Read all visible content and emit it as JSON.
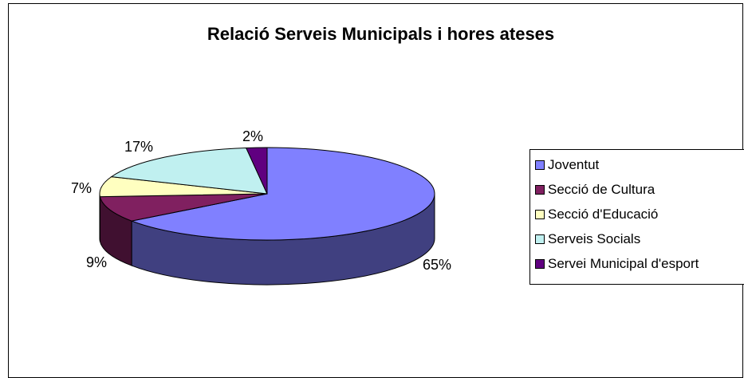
{
  "chart_data": {
    "type": "pie",
    "title": "Relació Serveis Municipals i hores ateses",
    "categories": [
      "Joventut",
      "Secció de Cultura",
      "Secció d'Educació",
      "Serveis Socials",
      "Servei Municipal d'esport"
    ],
    "values": [
      65,
      9,
      7,
      17,
      2
    ],
    "value_labels": [
      "65%",
      "9%",
      "7%",
      "17%",
      "2%"
    ],
    "colors": [
      "#8080FF",
      "#802060",
      "#FFFFC0",
      "#C0F0F0",
      "#600080"
    ],
    "side_colors": [
      "#404080",
      "#401030",
      "#808060",
      "#608080",
      "#300040"
    ],
    "three_d": true,
    "legend_position": "right"
  }
}
